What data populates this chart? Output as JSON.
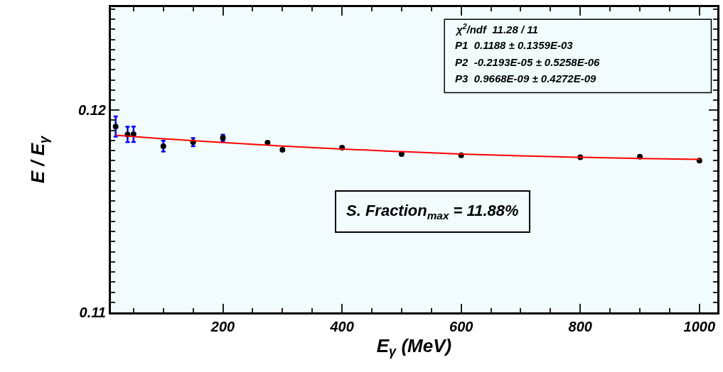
{
  "chart_data": {
    "type": "scatter",
    "xlabel": "E$_{γ}$ (MeV)",
    "ylabel": "E / E$_{γ}$",
    "xlim": [
      12,
      1030
    ],
    "xticks": [
      200,
      400,
      600,
      800,
      1000
    ],
    "ylim": [
      0.11,
      0.1251
    ],
    "yticks": [
      0.11,
      0.12
    ],
    "grid": false,
    "marker": "circle",
    "annotations": [
      "χ$^{2}$/ndf  11.28 / 11",
      "P1  0.1188 ± 0.1359E-03",
      "P2  -0.2193E-05 ± 0.5258E-06",
      "P3  0.9668E-09 ± 0.4272E-09",
      "S. Fraction$_{max}$ = 11.88%"
    ],
    "series": [
      {
        "color": "#000000",
        "x": [
          20,
          40,
          50,
          100,
          150,
          200,
          275,
          300,
          400,
          500,
          600,
          800,
          900,
          1000
        ],
        "values": [
          0.11919,
          0.1188,
          0.11881,
          0.11822,
          0.11842,
          0.11863,
          0.11839,
          0.11804,
          0.11815,
          0.11783,
          0.11777,
          0.11767,
          0.1177,
          0.11751
        ],
        "errors": [
          0.0005,
          0.00038,
          0.00038,
          0.00027,
          0.0002,
          0.00016,
          null,
          null,
          null,
          null,
          null,
          null,
          null,
          null
        ]
      },
      {
        "type": "line",
        "color": "#ff0000",
        "marker": "none",
        "line_style": "solid",
        "x": [
          20,
          100,
          200,
          300,
          400,
          500,
          600,
          700,
          800,
          900,
          1000
        ],
        "values": [
          0.11876,
          0.11859,
          0.1184,
          0.11823,
          0.11808,
          0.11795,
          0.11783,
          0.11774,
          0.11767,
          0.11761,
          0.11757
        ]
      }
    ]
  }
}
